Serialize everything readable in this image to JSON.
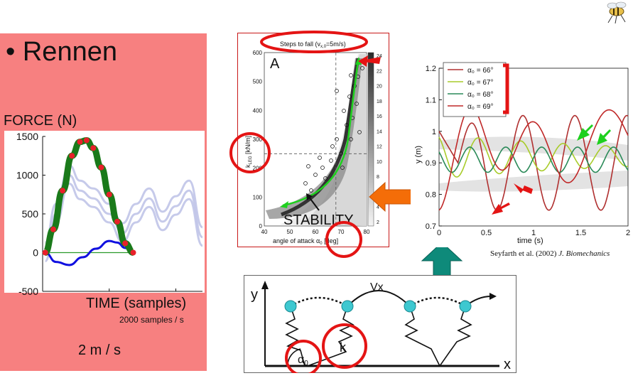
{
  "slide": {
    "bullet": "• Rennen",
    "force_label": "FORCE (N)",
    "time_label": "TIME (samples)",
    "rate_label": "2000 samples / s",
    "speed_label": "2 m / s",
    "citation_authors": "Seyfarth et al. (2002) ",
    "citation_journal": "J. Biomechanics"
  },
  "chart_data": [
    {
      "type": "line",
      "xlim": [
        0,
        1200
      ],
      "ylim": [
        -500,
        1500
      ],
      "xticks": [
        "0",
        "500",
        "1000"
      ],
      "yticks": [
        "-500",
        "0",
        "500",
        "1000",
        "1500"
      ],
      "series": [
        {
          "color": "#1a7a1a",
          "x": [
            20,
            80,
            150,
            220,
            280,
            330,
            380,
            440,
            500,
            560,
            620,
            680
          ],
          "y": [
            0,
            300,
            800,
            1250,
            1430,
            1450,
            1350,
            1100,
            750,
            400,
            120,
            0
          ]
        },
        {
          "color": "#e8202a",
          "x": [
            20,
            80,
            150,
            220,
            280,
            330,
            380,
            440,
            500,
            560,
            620,
            680
          ],
          "y": [
            0,
            300,
            800,
            1250,
            1430,
            1450,
            1350,
            1100,
            750,
            400,
            120,
            0
          ]
        },
        {
          "color": "#1010e0",
          "x": [
            20,
            100,
            200,
            300,
            400,
            500,
            560,
            620,
            680
          ],
          "y": [
            0,
            -120,
            -160,
            -60,
            50,
            150,
            130,
            60,
            0
          ]
        },
        {
          "color": "#c0c4e8",
          "x": [
            20,
            100,
            200,
            280,
            380,
            500,
            600,
            700,
            800,
            900,
            1000,
            1100,
            1200
          ],
          "y": [
            0,
            500,
            1000,
            800,
            700,
            500,
            250,
            500,
            700,
            400,
            600,
            800,
            200
          ]
        }
      ]
    },
    {
      "type": "heatmap",
      "title": "Steps to fall (v",
      "title_sub": "x,0",
      "title_tail": "=5m/s)",
      "panel_label": "A",
      "xlabel": "angle of attack α",
      "xlabel_sub": "0",
      "xlabel_tail": " [deg]",
      "ylabel": "k",
      "ylabel_sub": "LEG",
      "ylabel_tail": " [kN/m]",
      "xlim": [
        40,
        80
      ],
      "ylim": [
        0,
        600
      ],
      "xticks": [
        "40",
        "50",
        "60",
        "70",
        "80"
      ],
      "yticks": [
        "0",
        "100",
        "200",
        "300",
        "400",
        "500",
        "600"
      ],
      "colorbar_ticks": [
        "2",
        "4",
        "6",
        "8",
        "10",
        "12",
        "14",
        "16",
        "18",
        "20",
        "22",
        "24"
      ],
      "dashed_guides": {
        "x": 68,
        "y": 250
      },
      "stability_label": "STABILITY"
    },
    {
      "type": "line",
      "xlabel": "time (s)",
      "ylabel": "y (m)",
      "xlim": [
        0,
        2
      ],
      "ylim": [
        0.7,
        1.2
      ],
      "xticks": [
        "0",
        "0.5",
        "1",
        "1.5",
        "2"
      ],
      "yticks": [
        "0.7",
        "0.8",
        "0.9",
        "1",
        "1.1",
        "1.2"
      ],
      "legend_position": "top-left",
      "series": [
        {
          "name": "α₀ = 66°",
          "color": "#b03030"
        },
        {
          "name": "α₀ = 67°",
          "color": "#a8cc2a"
        },
        {
          "name": "α₀ = 68°",
          "color": "#2a8a58"
        },
        {
          "name": "α₀ = 69°",
          "color": "#c02828"
        }
      ]
    }
  ],
  "diagram": {
    "y_axis": "y",
    "x_axis": "x",
    "velocity": "Vx",
    "stiffness": "k",
    "angle": "α",
    "angle_sub": "0"
  },
  "colors": {
    "panel_bg": "#f78080",
    "highlight_red": "#e41414",
    "orange_arrow": "#f46d08",
    "teal_arrow": "#0e8a7a",
    "green_arrow": "#1ed01e",
    "ball": "#3ec8d0"
  }
}
